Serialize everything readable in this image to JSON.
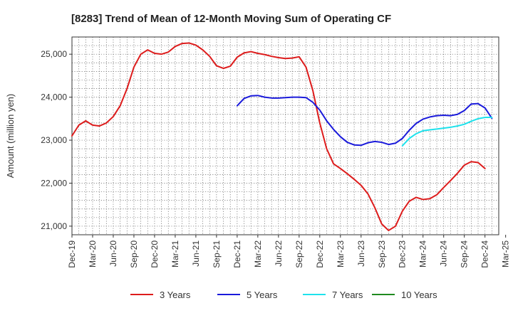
{
  "chart_data": {
    "type": "line",
    "title": "[8283]  Trend of Mean of 12-Month Moving Sum of Operating CF",
    "xlabel": "",
    "ylabel": "Amount (million yen)",
    "ylim": [
      20800,
      25400
    ],
    "yticks": [
      21000,
      22000,
      23000,
      24000,
      25000
    ],
    "ytick_labels": [
      "21,000",
      "22,000",
      "23,000",
      "24,000",
      "25,000"
    ],
    "xtick_labels": [
      "Dec-19",
      "Mar-20",
      "Jun-20",
      "Sep-20",
      "Dec-20",
      "Mar-21",
      "Jun-21",
      "Sep-21",
      "Dec-21",
      "Mar-22",
      "Jun-22",
      "Sep-22",
      "Dec-22",
      "Mar-23",
      "Jun-23",
      "Sep-23",
      "Dec-23",
      "Mar-24",
      "Jun-24",
      "Sep-24",
      "Dec-24",
      "Mar-25"
    ],
    "x_month_count": 63,
    "grid": true,
    "legend_position": "bottom",
    "series": [
      {
        "name": "3 Years",
        "color": "#dd1c1c",
        "start_index": 0,
        "values": [
          23100,
          23350,
          23450,
          23350,
          23330,
          23400,
          23550,
          23800,
          24200,
          24700,
          25000,
          25100,
          25020,
          25000,
          25050,
          25180,
          25250,
          25260,
          25210,
          25100,
          24950,
          24730,
          24670,
          24720,
          24930,
          25030,
          25060,
          25020,
          24990,
          24950,
          24920,
          24900,
          24910,
          24940,
          24700,
          24150,
          23400,
          22800,
          22450,
          22340,
          22220,
          22090,
          21950,
          21750,
          21430,
          21050,
          20900,
          21000,
          21350,
          21580,
          21670,
          21620,
          21640,
          21730,
          21900,
          22060,
          22230,
          22420,
          22500,
          22480,
          22340
        ]
      },
      {
        "name": "5 Years",
        "color": "#1a1adb",
        "start_index": 24,
        "values": [
          23800,
          23970,
          24030,
          24040,
          24000,
          23980,
          23980,
          23990,
          24000,
          24000,
          23990,
          23880,
          23700,
          23450,
          23250,
          23080,
          22950,
          22890,
          22880,
          22940,
          22970,
          22950,
          22900,
          22930,
          23040,
          23230,
          23390,
          23490,
          23540,
          23570,
          23580,
          23570,
          23600,
          23690,
          23840,
          23850,
          23750,
          23510
        ]
      },
      {
        "name": "7 Years",
        "color": "#1ee2ec",
        "start_index": 48,
        "values": [
          22870,
          23040,
          23150,
          23220,
          23240,
          23260,
          23280,
          23300,
          23330,
          23370,
          23440,
          23500,
          23530,
          23530
        ]
      },
      {
        "name": "10 Years",
        "color": "#1f8a1f",
        "start_index": 0,
        "values": []
      }
    ]
  }
}
